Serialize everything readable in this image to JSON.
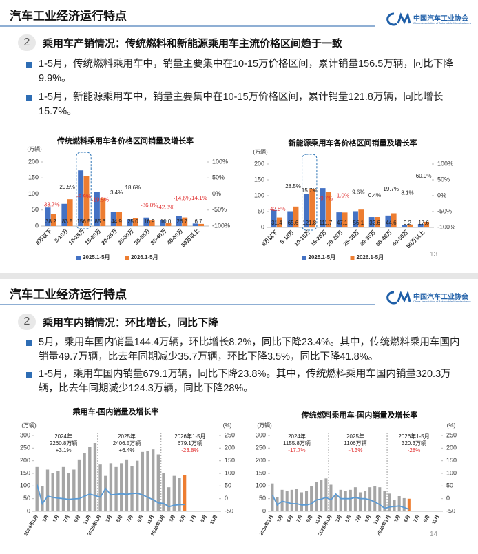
{
  "slides": [
    {
      "header": "汽车工业经济运行特点",
      "org": "中国汽车工业协会",
      "org_en": "China Association of Automobile Manufacturers",
      "section_no": 2,
      "section_title": "乘用车产销情况：传统燃料和新能源乘用车主流价格区间趋于一致",
      "bullets": [
        "1-5月，传统燃料乘用车中，销量主要集中在10-15万价格区间，累计销量156.5万辆，同比下降9.9%。",
        "1-5月，新能源乘用车中，销量主要集中在10-15万价格区间，累计销量121.8万辆，同比增长15.7%。"
      ],
      "page": 13
    },
    {
      "header": "汽车工业经济运行特点",
      "org": "中国汽车工业协会",
      "org_en": "China Association of Automobile Manufacturers",
      "section_no": 2,
      "section_title": "乘用车内销情况：环比增长，同比下降",
      "bullets": [
        "5月，乘用车国内销量144.4万辆，环比增长8.2%，同比下降23.4%。其中，传统燃料乘用车国内销量49.7万辆，比去年同期减少35.7万辆，环比下降3.5%，同比下降41.8%。",
        "1-5月，乘用车国内销量679.1万辆，同比下降23.8%。其中，传统燃料乘用车国内销量320.3万辆，比去年同期减少124.3万辆，同比下降28%。"
      ],
      "page": 14
    }
  ],
  "chart_data": [
    {
      "type": "bar",
      "title": "传统燃料乘用车各价格区间销量及增长率",
      "y_label": "(万辆)",
      "categories": [
        "8万以下",
        "8-10万",
        "10-15万",
        "15-20万",
        "20-25万",
        "25-30万",
        "30-35万",
        "35-40万",
        "40-50万",
        "50万以上"
      ],
      "series": [
        {
          "name": "2025.1-5月",
          "color": "#4472c4",
          "values": [
            57.6,
            69.3,
            173.7,
            106.3,
            43.4,
            21.1,
            26.4,
            17.3,
            31.3,
            7.8
          ]
        },
        {
          "name": "2026.1-5月",
          "color": "#ed7d31",
          "values": [
            38.2,
            83.5,
            156.5,
            85.6,
            44.9,
            25.0,
            16.9,
            10.0,
            26.7,
            6.7
          ],
          "value_labels": [
            "38.2",
            "83.5",
            "156.5",
            "85.6",
            "44.9",
            "25.0",
            "16.9",
            "10.0",
            "26.7",
            "6.7"
          ]
        },
        {
          "axis": "y2",
          "color": "#222222",
          "negative_color": "#e03030",
          "values": [
            -33.7,
            20.5,
            -9.9,
            -19.5,
            3.4,
            18.6,
            -36.0,
            -42.3,
            -14.6,
            -14.1
          ],
          "value_labels": [
            "-33.7%",
            "20.5%",
            "-9.9%",
            "-19.5%",
            "3.4%",
            "18.6%",
            "-36.0%",
            "-42.3%",
            "-14.6%",
            "-14.1%"
          ]
        }
      ],
      "ylim": [
        0,
        200
      ],
      "yticks": [
        0,
        50,
        100,
        150,
        200
      ],
      "y2lim": [
        -100,
        100
      ],
      "y2ticks": [
        {
          "value": -100,
          "label": "-100%"
        },
        {
          "value": -50,
          "label": "-50%"
        },
        {
          "value": 0,
          "label": "0%"
        },
        {
          "value": 50,
          "label": "50%"
        },
        {
          "value": 100,
          "label": "100%"
        }
      ],
      "legend": "bottom"
    },
    {
      "type": "bar",
      "title": "新能源乘用车各价格区间销量及增长率",
      "y_label": "(万辆)",
      "categories": [
        "8万以下",
        "8-10万",
        "10-15万",
        "15-20万",
        "20-25万",
        "25-30万",
        "30-35万",
        "35-40万",
        "40-50万",
        "50万以上"
      ],
      "series": [
        {
          "name": "2025.1-5月",
          "color": "#4472c4",
          "values": [
            54.9,
            51.1,
            105.3,
            123.7,
            47.6,
            51.2,
            32.5,
            37.3,
            8.5,
            10.9
          ]
        },
        {
          "name": "2026.1-5月",
          "color": "#ed7d31",
          "values": [
            31.4,
            65.6,
            121.8,
            111.7,
            47.1,
            56.1,
            32.6,
            44.6,
            9.2,
            17.6
          ],
          "value_labels": [
            "31.4",
            "65.6",
            "121.8",
            "111.7",
            "47.1",
            "56.1",
            "32.6",
            "44.6",
            "9.2",
            "17.6"
          ]
        },
        {
          "axis": "y2",
          "color": "#222222",
          "negative_color": "#e03030",
          "values": [
            -42.8,
            28.5,
            15.7,
            -9.7,
            -1.0,
            9.6,
            0.4,
            19.7,
            8.1,
            60.9
          ],
          "value_labels": [
            "-42.8%",
            "28.5%",
            "15.7%",
            "-9.7%",
            "-1.0%",
            "9.6%",
            "0.4%",
            "19.7%",
            "8.1%",
            "60.9%"
          ]
        }
      ],
      "ylim": [
        0,
        200
      ],
      "yticks": [
        0,
        50,
        100,
        150,
        200
      ],
      "y2lim": [
        -100,
        100
      ],
      "y2ticks": [
        {
          "value": -100,
          "label": "-100%"
        },
        {
          "value": -50,
          "label": "-50%"
        },
        {
          "value": 0,
          "label": "0%"
        },
        {
          "value": 50,
          "label": "50%"
        },
        {
          "value": 100,
          "label": "100%"
        }
      ],
      "legend": "bottom"
    },
    {
      "type": "bar",
      "title": "乘用车-国内销量及增长率",
      "y_label": "(万辆)",
      "y2_label": "(%)",
      "categories": [
        "2024年1月",
        null,
        "3月",
        null,
        "5月",
        null,
        "7月",
        null,
        "9月",
        null,
        "11月",
        null,
        "2025年1月",
        null,
        "3月",
        null,
        "5月",
        null,
        "7月",
        null,
        "9月",
        null,
        "11月",
        null,
        "2026年1月",
        null,
        "3月",
        null,
        "5月",
        null,
        "7月",
        null,
        "9月",
        null,
        "11月"
      ],
      "series": [
        {
          "color": "#a5a5a5",
          "last_color": "#ed7d31",
          "values": [
            175,
            100,
            165,
            150,
            160,
            175,
            150,
            165,
            205,
            230,
            255,
            270,
            185,
            140,
            190,
            175,
            190,
            205,
            180,
            200,
            235,
            240,
            245,
            225,
            150,
            95,
            140,
            133,
            144.4,
            null,
            null,
            null,
            null,
            null,
            null
          ]
        },
        {
          "axis": "y2",
          "type": "line",
          "color": "#5b9bd5",
          "values": [
            55,
            -20,
            10,
            5,
            2,
            0,
            -3,
            -1,
            0,
            10,
            18,
            12,
            6,
            40,
            15,
            17,
            19,
            17,
            20,
            21,
            15,
            5,
            -4,
            -17,
            -19,
            -32,
            -26,
            -24,
            -23.4,
            null,
            null,
            null,
            null,
            null,
            null
          ]
        }
      ],
      "ylim": [
        0,
        300
      ],
      "yticks": [
        0,
        50,
        100,
        150,
        200,
        250,
        300
      ],
      "y2lim": [
        -50,
        250
      ],
      "y2ticks": [
        -50,
        0,
        50,
        100,
        150,
        200,
        250
      ],
      "annotations": [
        {
          "label": "2024年",
          "total": "2260.8万辆",
          "growth": "+3.1%"
        },
        {
          "label": "2025年",
          "total": "2406.5万辆",
          "growth": "+6.4%"
        },
        {
          "label": "2026年1-5月",
          "total": "679.1万辆",
          "growth": "-23.8%"
        }
      ]
    },
    {
      "type": "bar",
      "title": "传统燃料乘用车-国内销量及增长率",
      "y_label": "(万辆)",
      "y2_label": "(%)",
      "categories": [
        "2024年1月",
        null,
        "3月",
        null,
        "5月",
        null,
        "7月",
        null,
        "9月",
        null,
        "11月",
        null,
        "2025年1月",
        null,
        "3月",
        null,
        "5月",
        null,
        "7月",
        null,
        "9月",
        null,
        "11月",
        null,
        "2026年1月",
        null,
        "3月",
        null,
        "5月",
        null,
        "7月",
        null,
        "9月",
        null,
        "11月"
      ],
      "series": [
        {
          "color": "#a5a5a5",
          "last_color": "#ed7d31",
          "values": [
            110,
            55,
            85,
            80,
            85,
            90,
            75,
            80,
            100,
            115,
            125,
            130,
            105,
            65,
            85,
            80,
            85,
            95,
            75,
            80,
            95,
            100,
            95,
            80,
            70,
            45,
            60,
            52,
            49.7,
            null,
            null,
            null,
            null,
            null,
            null
          ]
        },
        {
          "axis": "y2",
          "type": "line",
          "color": "#5b9bd5",
          "values": [
            15,
            -25,
            -10,
            -15,
            -20,
            -20,
            -25,
            -25,
            -20,
            -5,
            -2,
            5,
            -5,
            18,
            0,
            0,
            0,
            5,
            0,
            0,
            -5,
            -13,
            -24,
            -38,
            -33,
            -31,
            -29,
            -35,
            -41.8,
            null,
            null,
            null,
            null,
            null,
            null
          ]
        }
      ],
      "ylim": [
        0,
        300
      ],
      "yticks": [
        0,
        50,
        100,
        150,
        200,
        250,
        300
      ],
      "y2lim": [
        -50,
        250
      ],
      "y2ticks": [
        -50,
        0,
        50,
        100,
        150,
        200,
        250
      ],
      "annotations": [
        {
          "label": "2024年",
          "total": "1155.8万辆",
          "growth": "-17.7%"
        },
        {
          "label": "2025年",
          "total": "1106万辆",
          "growth": "-4.3%"
        },
        {
          "label": "2026年1-5月",
          "total": "320.3万辆",
          "growth": "-28%"
        }
      ]
    }
  ]
}
